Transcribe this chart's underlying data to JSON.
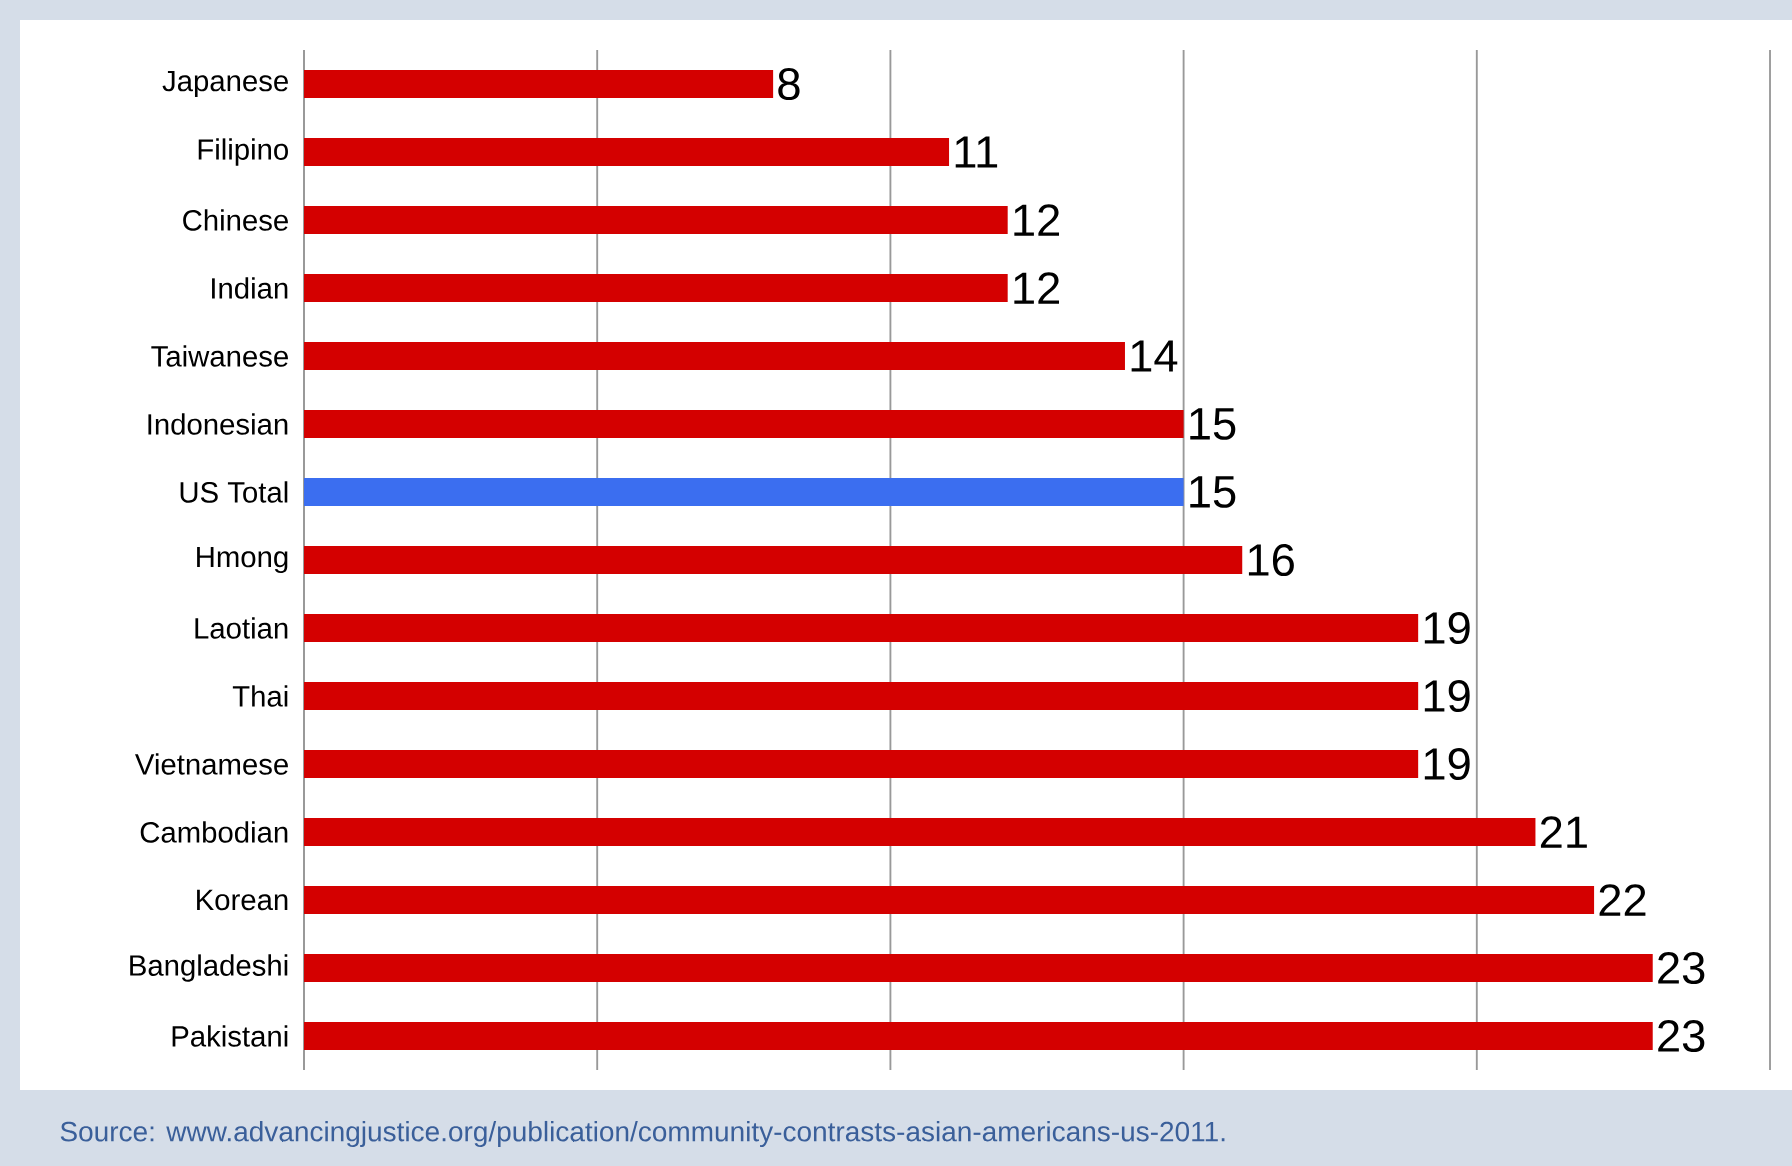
{
  "chart_data": {
    "type": "bar",
    "orientation": "horizontal",
    "categories": [
      "Japanese",
      "Filipino",
      "Chinese",
      "Indian",
      "Taiwanese",
      "Indonesian",
      "US Total",
      "Hmong",
      "Laotian",
      "Thai",
      "Vietnamese",
      "Cambodian",
      "Korean",
      "Bangladeshi",
      "Pakistani"
    ],
    "values": [
      8,
      11,
      12,
      12,
      14,
      15,
      15,
      16,
      19,
      19,
      19,
      21,
      22,
      23,
      23
    ],
    "colors": [
      "#d40000",
      "#d40000",
      "#d40000",
      "#d40000",
      "#d40000",
      "#d40000",
      "#3b6ef0",
      "#d40000",
      "#d40000",
      "#d40000",
      "#d40000",
      "#d40000",
      "#d40000",
      "#d40000",
      "#d40000"
    ],
    "data_labels": true,
    "xlim": [
      0,
      25
    ],
    "xticks": [
      {
        "value": 0,
        "label": null
      },
      {
        "value": 5,
        "label": null
      },
      {
        "value": 10,
        "label": null
      },
      {
        "value": 15,
        "label": null
      },
      {
        "value": 20,
        "label": null
      },
      {
        "value": 25,
        "label": null
      }
    ],
    "tick_labels": "y",
    "grid": "x",
    "annotations": [
      "Source: www.advancingjustice.org/publication/community-contrasts-asian-americans-us-2011."
    ]
  }
}
